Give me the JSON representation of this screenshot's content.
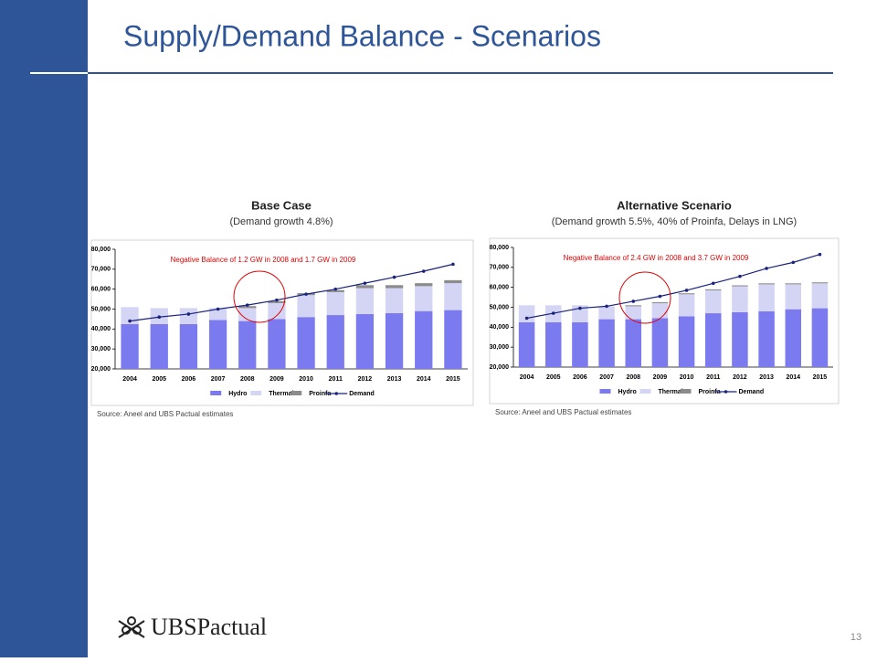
{
  "slide_title": "Supply/Demand Balance - Scenarios",
  "page_number": "13",
  "logo": "UBSPactual",
  "chart_data": [
    {
      "type": "bar",
      "title": "Base Case",
      "subtitle": "(Demand growth 4.8%)",
      "annotation": "Negative Balance of 1.2 GW in 2008 and 1.7 GW in 2009",
      "source": "Source: Aneel and UBS Pactual estimates",
      "categories": [
        "2004",
        "2005",
        "2006",
        "2007",
        "2008",
        "2009",
        "2010",
        "2011",
        "2012",
        "2013",
        "2014",
        "2015"
      ],
      "series": [
        {
          "name": "Hydro",
          "color": "#7b7bef",
          "kind": "bar",
          "values": [
            42500,
            42500,
            42500,
            44500,
            44000,
            45000,
            46000,
            47000,
            47500,
            48000,
            49000,
            49500
          ]
        },
        {
          "name": "Thermal",
          "color": "#d4d4f5",
          "kind": "bar",
          "values": [
            8500,
            8000,
            8000,
            6000,
            6500,
            8000,
            11000,
            11500,
            13000,
            12500,
            12500,
            13500
          ]
        },
        {
          "name": "Proinfa",
          "color": "#8c8c8c",
          "kind": "bar",
          "values": [
            0,
            0,
            0,
            0,
            1000,
            1000,
            1000,
            1000,
            1500,
            1500,
            1500,
            1500
          ]
        },
        {
          "name": "Demand",
          "color": "#1a237e",
          "kind": "line",
          "values": [
            44000,
            46000,
            47500,
            50000,
            52000,
            54500,
            57500,
            60000,
            63000,
            66000,
            69000,
            72500
          ]
        }
      ],
      "ylim": [
        20000,
        80000
      ],
      "yticks": [
        {
          "value": 20000,
          "label": "20,000"
        },
        {
          "value": 30000,
          "label": "30,000"
        },
        {
          "value": 40000,
          "label": "40,000"
        },
        {
          "value": 50000,
          "label": "50,000"
        },
        {
          "value": 60000,
          "label": "60,000"
        },
        {
          "value": 70000,
          "label": "70,000"
        },
        {
          "value": 80000,
          "label": "80,000"
        }
      ]
    },
    {
      "type": "bar",
      "title": "Alternative Scenario",
      "subtitle": "(Demand growth 5.5%, 40% of Proinfa, Delays in LNG)",
      "annotation": "Negative Balance of 2.4 GW in 2008 and 3.7 GW in 2009",
      "source": "Source: Aneel and UBS Pactual estimates",
      "categories": [
        "2004",
        "2005",
        "2006",
        "2007",
        "2008",
        "2009",
        "2010",
        "2011",
        "2012",
        "2013",
        "2014",
        "2015"
      ],
      "series": [
        {
          "name": "Hydro",
          "color": "#7b7bef",
          "kind": "bar",
          "values": [
            42500,
            42500,
            42500,
            44000,
            44000,
            44500,
            45500,
            47000,
            47500,
            48000,
            49000,
            49500
          ]
        },
        {
          "name": "Thermal",
          "color": "#d4d4f5",
          "kind": "bar",
          "values": [
            8500,
            8500,
            8500,
            6500,
            6500,
            7500,
            11000,
            11500,
            13000,
            13500,
            12500,
            12500
          ]
        },
        {
          "name": "Proinfa",
          "color": "#8c8c8c",
          "kind": "bar",
          "values": [
            0,
            0,
            0,
            0,
            500,
            500,
            500,
            500,
            500,
            500,
            500,
            500
          ]
        },
        {
          "name": "Demand",
          "color": "#1a237e",
          "kind": "line",
          "values": [
            44500,
            47000,
            49500,
            50500,
            53000,
            55500,
            58500,
            62000,
            65500,
            69500,
            72500,
            76500
          ]
        }
      ],
      "ylim": [
        20000,
        80000
      ],
      "yticks": [
        {
          "value": 20000,
          "label": "20,000"
        },
        {
          "value": 30000,
          "label": "30,000"
        },
        {
          "value": 40000,
          "label": "40,000"
        },
        {
          "value": 50000,
          "label": "50,000"
        },
        {
          "value": 60000,
          "label": "60,000"
        },
        {
          "value": 70000,
          "label": "70,000"
        },
        {
          "value": 80000,
          "label": "80,000"
        }
      ]
    }
  ]
}
